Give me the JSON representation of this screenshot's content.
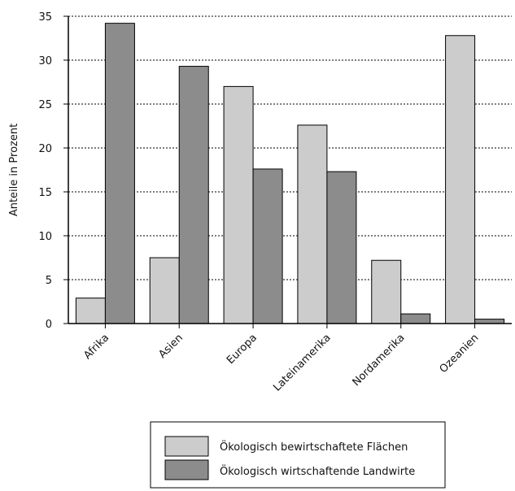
{
  "chart_data": {
    "type": "bar",
    "title": "",
    "xlabel": "",
    "ylabel": "Anteile in Prozent",
    "ylim": [
      0,
      35
    ],
    "yticks": [
      0,
      5,
      10,
      15,
      20,
      25,
      30,
      35
    ],
    "grid": true,
    "legend_position": "bottom",
    "categories": [
      "Afrika",
      "Asien",
      "Europa",
      "Lateinamerika",
      "Nordamerika",
      "Ozeanien"
    ],
    "series": [
      {
        "name": "Ökologisch bewirtschaftete Flächen",
        "color": "#cccccc",
        "values": [
          2.9,
          7.5,
          27.0,
          22.6,
          7.2,
          32.8
        ]
      },
      {
        "name": "Ökologisch wirtschaftende Landwirte",
        "color": "#8c8c8c",
        "values": [
          34.2,
          29.3,
          17.6,
          17.3,
          1.1,
          0.5
        ]
      }
    ]
  }
}
